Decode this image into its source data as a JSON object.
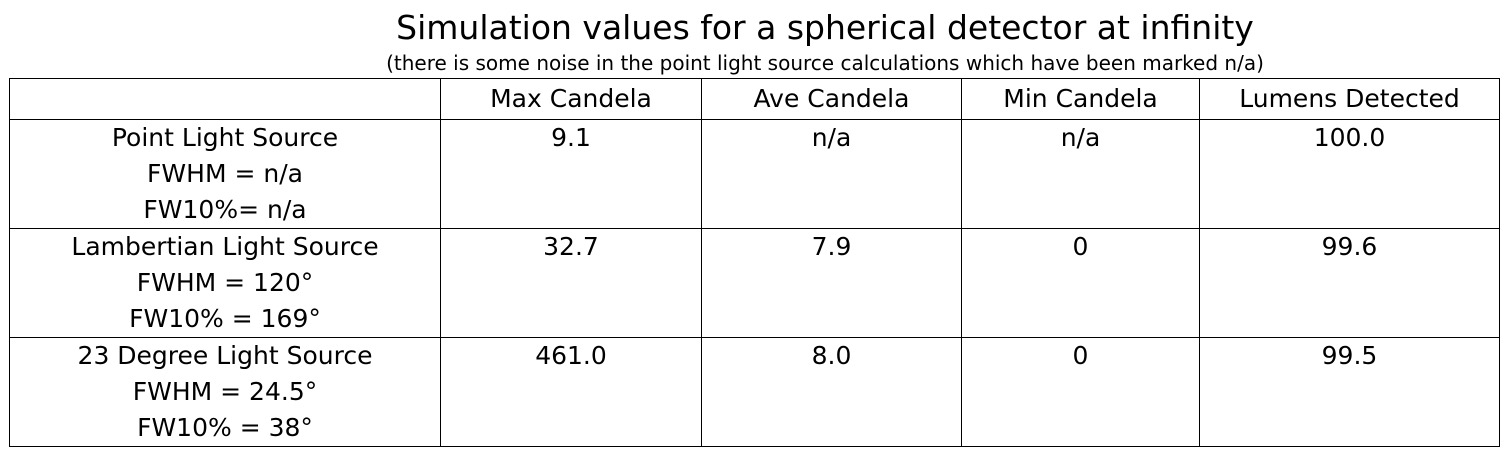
{
  "title": "Simulation values for a spherical detector at infinity",
  "subtitle": "(there is some noise in the point light source calculations which have been marked n/a)",
  "table": {
    "header": [
      "Max Candela",
      "Ave Candela",
      "Min Candela",
      "Lumens Detected"
    ],
    "rows": [
      {
        "label": [
          "Point Light Source",
          "FWHM = n/a",
          "FW10%= n/a"
        ],
        "cells": [
          "9.1",
          "n/a",
          "n/a",
          "100.0"
        ]
      },
      {
        "label": [
          "Lambertian Light Source",
          "FWHM = 120°",
          "FW10% = 169°"
        ],
        "cells": [
          "32.7",
          "7.9",
          "0",
          "99.6"
        ]
      },
      {
        "label": [
          "23 Degree Light Source",
          "FWHM = 24.5°",
          "FW10% = 38°"
        ],
        "cells": [
          "461.0",
          "8.0",
          "0",
          "99.5"
        ]
      }
    ]
  }
}
